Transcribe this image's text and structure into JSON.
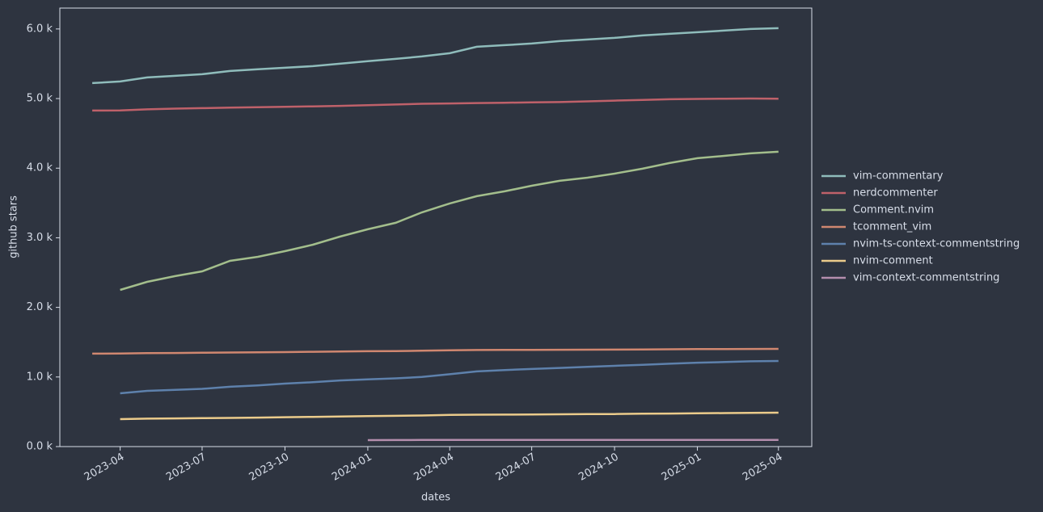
{
  "chart_data": {
    "type": "line",
    "xlabel": "dates",
    "ylabel": "github stars",
    "x": [
      "2023-03",
      "2023-04",
      "2023-05",
      "2023-06",
      "2023-07",
      "2023-08",
      "2023-09",
      "2023-10",
      "2023-11",
      "2023-12",
      "2024-01",
      "2024-02",
      "2024-03",
      "2024-04",
      "2024-05",
      "2024-06",
      "2024-07",
      "2024-08",
      "2024-09",
      "2024-10",
      "2024-11",
      "2024-12",
      "2025-01",
      "2025-02",
      "2025-03",
      "2025-04"
    ],
    "xlim": [
      "2023-01-24",
      "2025-05-08"
    ],
    "xticks": [
      "2023-04",
      "2023-07",
      "2023-10",
      "2024-01",
      "2024-04",
      "2024-07",
      "2024-10",
      "2025-01",
      "2025-04"
    ],
    "ylim": [
      0,
      6300
    ],
    "yticks": [
      {
        "value": 0,
        "label": "0.0 k"
      },
      {
        "value": 1000,
        "label": "1.0 k"
      },
      {
        "value": 2000,
        "label": "2.0 k"
      },
      {
        "value": 3000,
        "label": "3.0 k"
      },
      {
        "value": 4000,
        "label": "4.0 k"
      },
      {
        "value": 5000,
        "label": "5.0 k"
      },
      {
        "value": 6000,
        "label": "6.0 k"
      }
    ],
    "legend": "right",
    "series": [
      {
        "name": "vim-commentary",
        "color": "#8fbcbb",
        "values": [
          5222,
          5245,
          5303,
          5327,
          5350,
          5396,
          5420,
          5443,
          5466,
          5501,
          5536,
          5570,
          5605,
          5652,
          5744,
          5768,
          5791,
          5826,
          5849,
          5872,
          5907,
          5930,
          5953,
          5977,
          6000,
          6011
        ]
      },
      {
        "name": "nerdcommenter",
        "color": "#bf616a",
        "values": [
          4828,
          4830,
          4845,
          4855,
          4862,
          4870,
          4875,
          4882,
          4888,
          4895,
          4905,
          4915,
          4925,
          4930,
          4935,
          4940,
          4945,
          4950,
          4960,
          4970,
          4980,
          4990,
          4995,
          4998,
          5000,
          4998
        ]
      },
      {
        "name": "Comment.nvim",
        "color": "#a3be8c",
        "values": [
          null,
          2251,
          2367,
          2449,
          2518,
          2669,
          2727,
          2808,
          2901,
          3017,
          3122,
          3215,
          3365,
          3493,
          3598,
          3667,
          3748,
          3818,
          3864,
          3922,
          3992,
          4073,
          4143,
          4178,
          4213,
          4236
        ]
      },
      {
        "name": "tcomment_vim",
        "color": "#d08770",
        "values": [
          1335,
          1338,
          1342,
          1345,
          1348,
          1352,
          1355,
          1358,
          1362,
          1366,
          1370,
          1373,
          1377,
          1383,
          1388,
          1390,
          1390,
          1391,
          1392,
          1393,
          1395,
          1398,
          1400,
          1402,
          1403,
          1404
        ]
      },
      {
        "name": "nvim-ts-context-commentstring",
        "color": "#5e81ac",
        "values": [
          null,
          766,
          800,
          815,
          830,
          860,
          880,
          905,
          925,
          950,
          965,
          980,
          1000,
          1040,
          1080,
          1100,
          1115,
          1130,
          1145,
          1160,
          1175,
          1190,
          1205,
          1215,
          1225,
          1230
        ]
      },
      {
        "name": "nvim-comment",
        "color": "#ebcb8b",
        "values": [
          null,
          395,
          402,
          405,
          408,
          412,
          416,
          422,
          427,
          432,
          437,
          442,
          447,
          455,
          458,
          460,
          462,
          464,
          466,
          468,
          472,
          475,
          478,
          482,
          485,
          487
        ]
      },
      {
        "name": "vim-context-commentstring",
        "color": "#b48ead",
        "values": [
          null,
          null,
          null,
          null,
          null,
          null,
          null,
          null,
          null,
          null,
          93,
          94,
          95,
          96,
          96,
          96,
          96,
          96,
          96,
          96,
          96,
          96,
          96,
          96,
          96,
          96
        ]
      }
    ]
  }
}
